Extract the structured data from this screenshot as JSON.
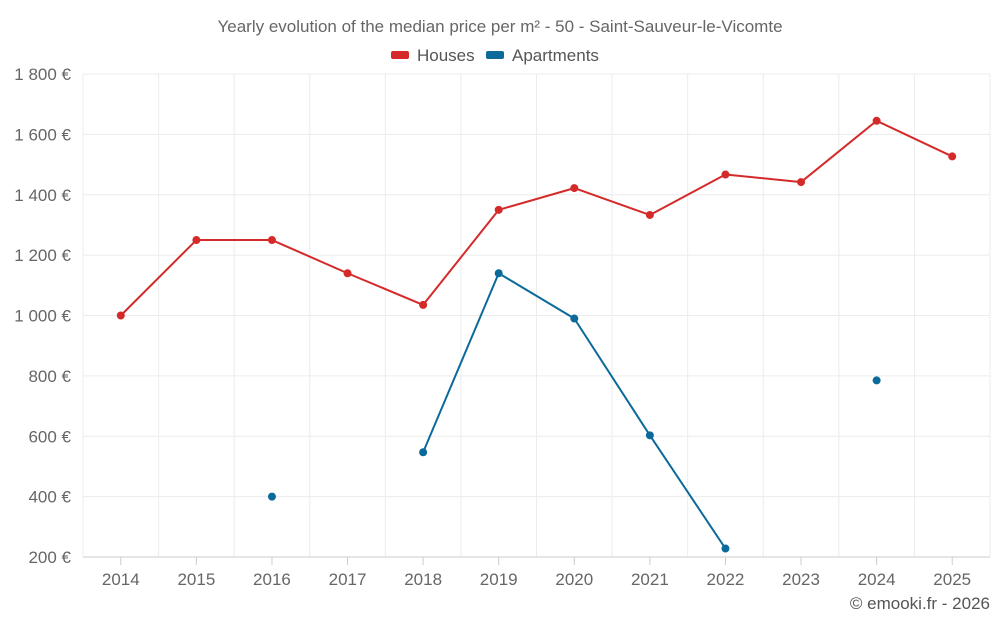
{
  "chart_data": {
    "type": "line",
    "title": "Yearly evolution of the median price per m² - 50 - Saint-Sauveur-le-Vicomte",
    "categories": [
      "2014",
      "2015",
      "2016",
      "2017",
      "2018",
      "2019",
      "2020",
      "2021",
      "2022",
      "2023",
      "2024",
      "2025"
    ],
    "y_ticks": [
      "1 800 €",
      "1 600 €",
      "1 400 €",
      "1 200 €",
      "1 000 €",
      "800 €",
      "600 €",
      "400 €",
      "200 €"
    ],
    "y_tick_values": [
      1800,
      1600,
      1400,
      1200,
      1000,
      800,
      600,
      400,
      200
    ],
    "ylim": [
      200,
      1800
    ],
    "grid": true,
    "legend_position": "top-center",
    "series": [
      {
        "name": "Houses",
        "color": "#d42a2a",
        "values": [
          1000,
          1250,
          1250,
          1140,
          1035,
          1350,
          1422,
          1333,
          1467,
          1442,
          1645,
          1527
        ]
      },
      {
        "name": "Apartments",
        "color": "#0c6a9a",
        "values": [
          null,
          null,
          400,
          null,
          547,
          1140,
          990,
          603,
          228,
          null,
          785,
          null
        ]
      }
    ]
  },
  "credit": "© emooki.fr - 2026"
}
